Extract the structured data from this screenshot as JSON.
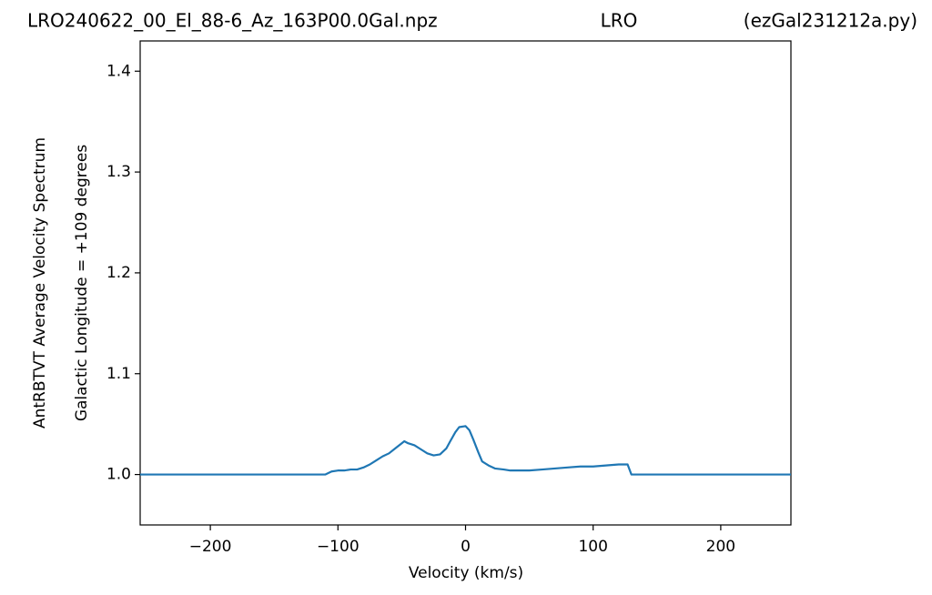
{
  "chart_data": {
    "type": "line",
    "title_left": "LRO240622_00_El_88-6_Az_163P00.0Gal.npz",
    "title_center": "LRO",
    "title_right": "(ezGal231212a.py)",
    "ylabel": [
      "AntRBTVT Average Velocity Spectrum",
      "Galactic Longitude = +109 degrees"
    ],
    "xlabel": "Velocity (km/s)",
    "xlim": [
      -255,
      255
    ],
    "ylim": [
      0.95,
      1.43
    ],
    "xticks": [
      {
        "value": -200,
        "label": "−200"
      },
      {
        "value": -100,
        "label": "−100"
      },
      0,
      100,
      200
    ],
    "yticks": [
      {
        "value": 1,
        "label": "1.0"
      },
      1.1,
      1.2,
      1.3,
      1.4
    ],
    "series": [
      {
        "color": "#1f77b4",
        "x": [
          -255,
          -110,
          -105,
          -100,
          -95,
          -90,
          -85,
          -80,
          -75,
          -70,
          -65,
          -60,
          -55,
          -50,
          -48,
          -45,
          -40,
          -35,
          -30,
          -25,
          -20,
          -15,
          -12,
          -8,
          -5,
          0,
          3,
          6,
          10,
          13,
          18,
          23,
          30,
          35,
          40,
          50,
          60,
          70,
          80,
          90,
          100,
          110,
          120,
          127,
          130,
          255
        ],
        "values": [
          1.0,
          1.0,
          1.003,
          1.004,
          1.004,
          1.005,
          1.005,
          1.007,
          1.01,
          1.014,
          1.018,
          1.021,
          1.026,
          1.031,
          1.033,
          1.031,
          1.029,
          1.025,
          1.021,
          1.019,
          1.02,
          1.026,
          1.033,
          1.042,
          1.047,
          1.048,
          1.044,
          1.035,
          1.022,
          1.013,
          1.009,
          1.006,
          1.005,
          1.004,
          1.004,
          1.004,
          1.005,
          1.006,
          1.007,
          1.008,
          1.008,
          1.009,
          1.01,
          1.01,
          1.0,
          1.0
        ]
      }
    ]
  }
}
